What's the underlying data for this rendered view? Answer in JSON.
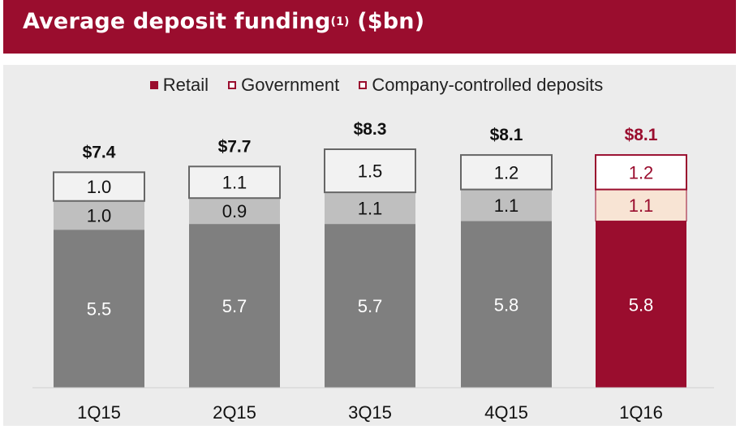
{
  "title": {
    "main": "Average deposit funding",
    "superscript": "(1)",
    "unit": " ($bn)"
  },
  "colors": {
    "title_bg": "#9a0d2e",
    "retail": "#7f7f7f",
    "government": "#bfbfbf",
    "company_controlled": "#f2f2f2",
    "highlight_retail": "#9a0d2e",
    "highlight_government": "#f8e4d4",
    "highlight_company": "#ffffff",
    "highlight_text": "#9a0d2e"
  },
  "legend": [
    {
      "name": "Retail",
      "icon": "filled-square-icon"
    },
    {
      "name": "Government",
      "icon": "outlined-square-icon"
    },
    {
      "name": "Company-controlled deposits",
      "icon": "outlined-square-icon"
    }
  ],
  "chart_data": {
    "type": "bar",
    "stacked": true,
    "title": "Average deposit funding(1) ($bn)",
    "categories": [
      "1Q15",
      "2Q15",
      "3Q15",
      "4Q15",
      "1Q16"
    ],
    "series": [
      {
        "name": "Retail",
        "values": [
          5.5,
          5.7,
          5.7,
          5.8,
          5.8
        ]
      },
      {
        "name": "Government",
        "values": [
          1.0,
          0.9,
          1.1,
          1.1,
          1.1
        ]
      },
      {
        "name": "Company-controlled deposits",
        "values": [
          1.0,
          1.1,
          1.5,
          1.2,
          1.2
        ]
      }
    ],
    "totals": [
      "$7.4",
      "$7.7",
      "$8.3",
      "$8.1",
      "$8.1"
    ],
    "highlight_category": "1Q16",
    "ylim": [
      0,
      8.3
    ],
    "grid": false,
    "legend_position": "top-center"
  }
}
